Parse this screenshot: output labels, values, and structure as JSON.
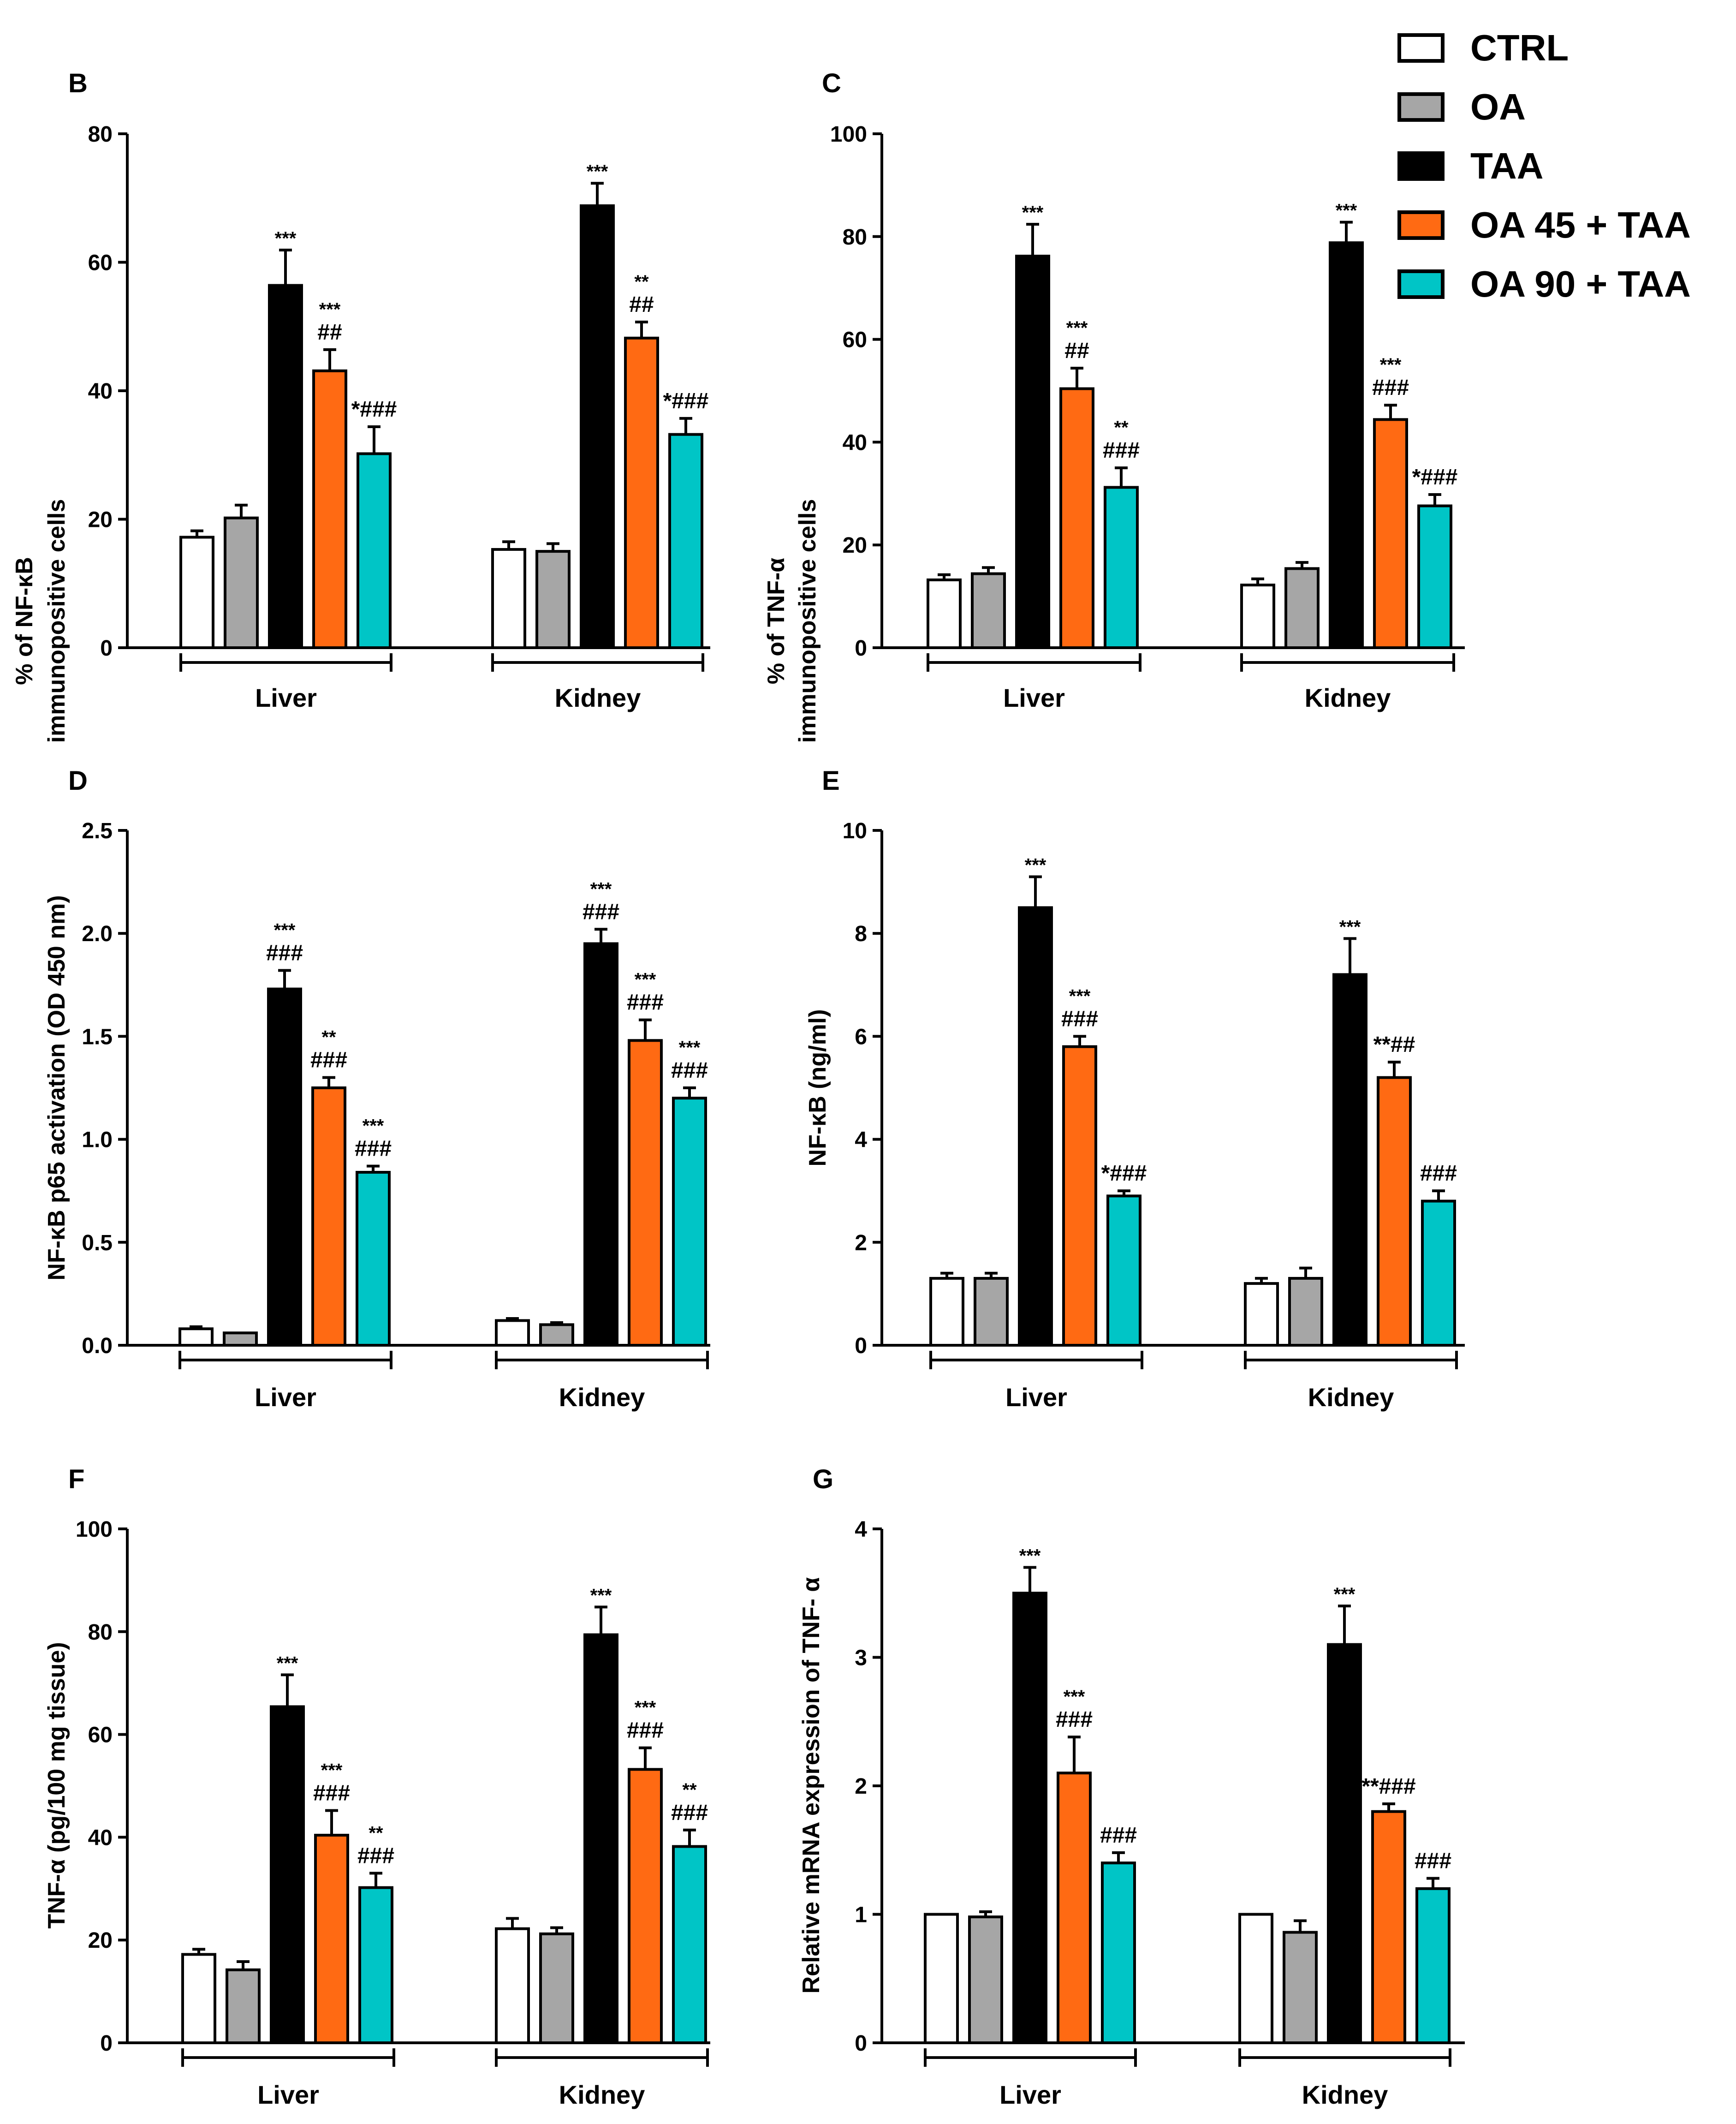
{
  "legend": {
    "items": [
      {
        "label": "CTRL",
        "color": "#ffffff"
      },
      {
        "label": "OA",
        "color": "#a6a6a6"
      },
      {
        "label": "TAA",
        "color": "#000000"
      },
      {
        "label": "OA 45 + TAA",
        "color": "#ff6a13"
      },
      {
        "label": "OA 90 + TAA",
        "color": "#00c5c6"
      }
    ]
  },
  "chart_data": [
    {
      "panel": "B",
      "type": "bar",
      "ylabel": [
        "% of NF-κB",
        "immunopositive cells"
      ],
      "ylim": [
        0,
        80
      ],
      "yticks": [
        0,
        20,
        40,
        60,
        80
      ],
      "tick_labels": [
        "0",
        "20",
        "40",
        "60",
        "80"
      ],
      "categories": [
        "Liver",
        "Kidney"
      ],
      "series": [
        {
          "name": "CTRL",
          "values": [
            17.2,
            15.3
          ],
          "errors": [
            1.0,
            1.2
          ]
        },
        {
          "name": "OA",
          "values": [
            20.2,
            15.0
          ],
          "errors": [
            2.0,
            1.2
          ]
        },
        {
          "name": "TAA",
          "values": [
            56.4,
            68.8
          ],
          "errors": [
            5.5,
            3.5
          ]
        },
        {
          "name": "OA 45 + TAA",
          "values": [
            43.1,
            48.2
          ],
          "errors": [
            3.3,
            2.5
          ]
        },
        {
          "name": "OA 90 + TAA",
          "values": [
            30.2,
            33.2
          ],
          "errors": [
            4.2,
            2.5
          ]
        }
      ],
      "annotations": [
        [
          "",
          "",
          "***",
          "***\n##",
          "*###"
        ],
        [
          "",
          "",
          "***",
          "**\n##",
          "*###"
        ]
      ]
    },
    {
      "panel": "C",
      "type": "bar",
      "ylabel": [
        "% of TNF-α",
        "immunopositive cells"
      ],
      "ylim": [
        0,
        100
      ],
      "yticks": [
        0,
        20,
        40,
        60,
        80,
        100
      ],
      "tick_labels": [
        "0",
        "20",
        "40",
        "60",
        "80",
        "100"
      ],
      "categories": [
        "Liver",
        "Kidney"
      ],
      "series": [
        {
          "name": "CTRL",
          "values": [
            13.2,
            12.2
          ],
          "errors": [
            1.0,
            1.2
          ]
        },
        {
          "name": "OA",
          "values": [
            14.4,
            15.4
          ],
          "errors": [
            1.2,
            1.2
          ]
        },
        {
          "name": "TAA",
          "values": [
            76.2,
            78.8
          ],
          "errors": [
            6.2,
            4.0
          ]
        },
        {
          "name": "OA 45 + TAA",
          "values": [
            50.4,
            44.4
          ],
          "errors": [
            4.0,
            2.8
          ]
        },
        {
          "name": "OA 90 + TAA",
          "values": [
            31.2,
            27.6
          ],
          "errors": [
            3.8,
            2.2
          ]
        }
      ],
      "annotations": [
        [
          "",
          "",
          "***",
          "***\n##",
          "**\n###"
        ],
        [
          "",
          "",
          "***",
          "***\n###",
          "*###"
        ]
      ]
    },
    {
      "panel": "D",
      "type": "bar",
      "ylabel": [
        "NF-κB p65 activation (OD 450 nm)"
      ],
      "ylim": [
        0,
        2.5
      ],
      "yticks": [
        0,
        0.5,
        1.0,
        1.5,
        2.0,
        2.5
      ],
      "tick_labels": [
        "0.0",
        "0.5",
        "1.0",
        "1.5",
        "2.0",
        "2.5"
      ],
      "categories": [
        "Liver",
        "Kidney"
      ],
      "series": [
        {
          "name": "CTRL",
          "values": [
            0.08,
            0.12
          ],
          "errors": [
            0.01,
            0.01
          ]
        },
        {
          "name": "OA",
          "values": [
            0.06,
            0.1
          ],
          "errors": [
            0.0,
            0.01
          ]
        },
        {
          "name": "TAA",
          "values": [
            1.73,
            1.95
          ],
          "errors": [
            0.09,
            0.07
          ]
        },
        {
          "name": "OA 45 + TAA",
          "values": [
            1.25,
            1.48
          ],
          "errors": [
            0.05,
            0.1
          ]
        },
        {
          "name": "OA 90 + TAA",
          "values": [
            0.84,
            1.2
          ],
          "errors": [
            0.03,
            0.05
          ]
        }
      ],
      "annotations": [
        [
          "",
          "",
          "***\n###",
          "**\n###",
          "***\n###"
        ],
        [
          "",
          "",
          "***\n###",
          "***\n###",
          "***\n###"
        ]
      ]
    },
    {
      "panel": "E",
      "type": "bar",
      "ylabel": [
        "NF-κB (ng/ml)"
      ],
      "ylim": [
        0,
        10
      ],
      "yticks": [
        0,
        2,
        4,
        6,
        8,
        10
      ],
      "tick_labels": [
        "0",
        "2",
        "4",
        "6",
        "8",
        "10"
      ],
      "categories": [
        "Liver",
        "Kidney"
      ],
      "series": [
        {
          "name": "CTRL",
          "values": [
            1.3,
            1.2
          ],
          "errors": [
            0.1,
            0.1
          ]
        },
        {
          "name": "OA",
          "values": [
            1.3,
            1.3
          ],
          "errors": [
            0.1,
            0.2
          ]
        },
        {
          "name": "TAA",
          "values": [
            8.5,
            7.2
          ],
          "errors": [
            0.6,
            0.7
          ]
        },
        {
          "name": "OA 45 + TAA",
          "values": [
            5.8,
            5.2
          ],
          "errors": [
            0.2,
            0.3
          ]
        },
        {
          "name": "OA 90 + TAA",
          "values": [
            2.9,
            2.8
          ],
          "errors": [
            0.1,
            0.2
          ]
        }
      ],
      "annotations": [
        [
          "",
          "",
          "***",
          "***\n###",
          "*###"
        ],
        [
          "",
          "",
          "***",
          "**##",
          "###"
        ]
      ]
    },
    {
      "panel": "F",
      "type": "bar",
      "ylabel": [
        "TNF-α (pg/100 mg tissue)"
      ],
      "ylim": [
        0,
        100
      ],
      "yticks": [
        0,
        20,
        40,
        60,
        80,
        100
      ],
      "tick_labels": [
        "0",
        "20",
        "40",
        "60",
        "80",
        "100"
      ],
      "categories": [
        "Liver",
        "Kidney"
      ],
      "series": [
        {
          "name": "CTRL",
          "values": [
            17.2,
            22.2
          ],
          "errors": [
            1.0,
            2.0
          ]
        },
        {
          "name": "OA",
          "values": [
            14.2,
            21.2
          ],
          "errors": [
            1.6,
            1.2
          ]
        },
        {
          "name": "TAA",
          "values": [
            65.4,
            79.4
          ],
          "errors": [
            6.2,
            5.4
          ]
        },
        {
          "name": "OA 45 + TAA",
          "values": [
            40.4,
            53.2
          ],
          "errors": [
            4.8,
            4.2
          ]
        },
        {
          "name": "OA 90 + TAA",
          "values": [
            30.2,
            38.2
          ],
          "errors": [
            2.8,
            3.2
          ]
        }
      ],
      "annotations": [
        [
          "",
          "",
          "***",
          "***\n###",
          "**\n###"
        ],
        [
          "",
          "",
          "***",
          "***\n###",
          "**\n###"
        ]
      ]
    },
    {
      "panel": "G",
      "type": "bar",
      "ylabel": [
        "Relative mRNA expression of TNF- α"
      ],
      "ylim": [
        0,
        4
      ],
      "yticks": [
        0,
        1,
        2,
        3,
        4
      ],
      "tick_labels": [
        "0",
        "1",
        "2",
        "3",
        "4"
      ],
      "categories": [
        "Liver",
        "Kidney"
      ],
      "series": [
        {
          "name": "CTRL",
          "values": [
            1.0,
            1.0
          ],
          "errors": [
            0.0,
            0.0
          ]
        },
        {
          "name": "OA",
          "values": [
            0.98,
            0.86
          ],
          "errors": [
            0.04,
            0.09
          ]
        },
        {
          "name": "TAA",
          "values": [
            3.5,
            3.1
          ],
          "errors": [
            0.2,
            0.3
          ]
        },
        {
          "name": "OA 45 + TAA",
          "values": [
            2.1,
            1.8
          ],
          "errors": [
            0.28,
            0.06
          ]
        },
        {
          "name": "OA 90 + TAA",
          "values": [
            1.4,
            1.2
          ],
          "errors": [
            0.08,
            0.08
          ]
        }
      ],
      "annotations": [
        [
          "",
          "",
          "***",
          "***\n###",
          "###"
        ],
        [
          "",
          "",
          "***",
          "**###",
          "###"
        ]
      ]
    }
  ]
}
